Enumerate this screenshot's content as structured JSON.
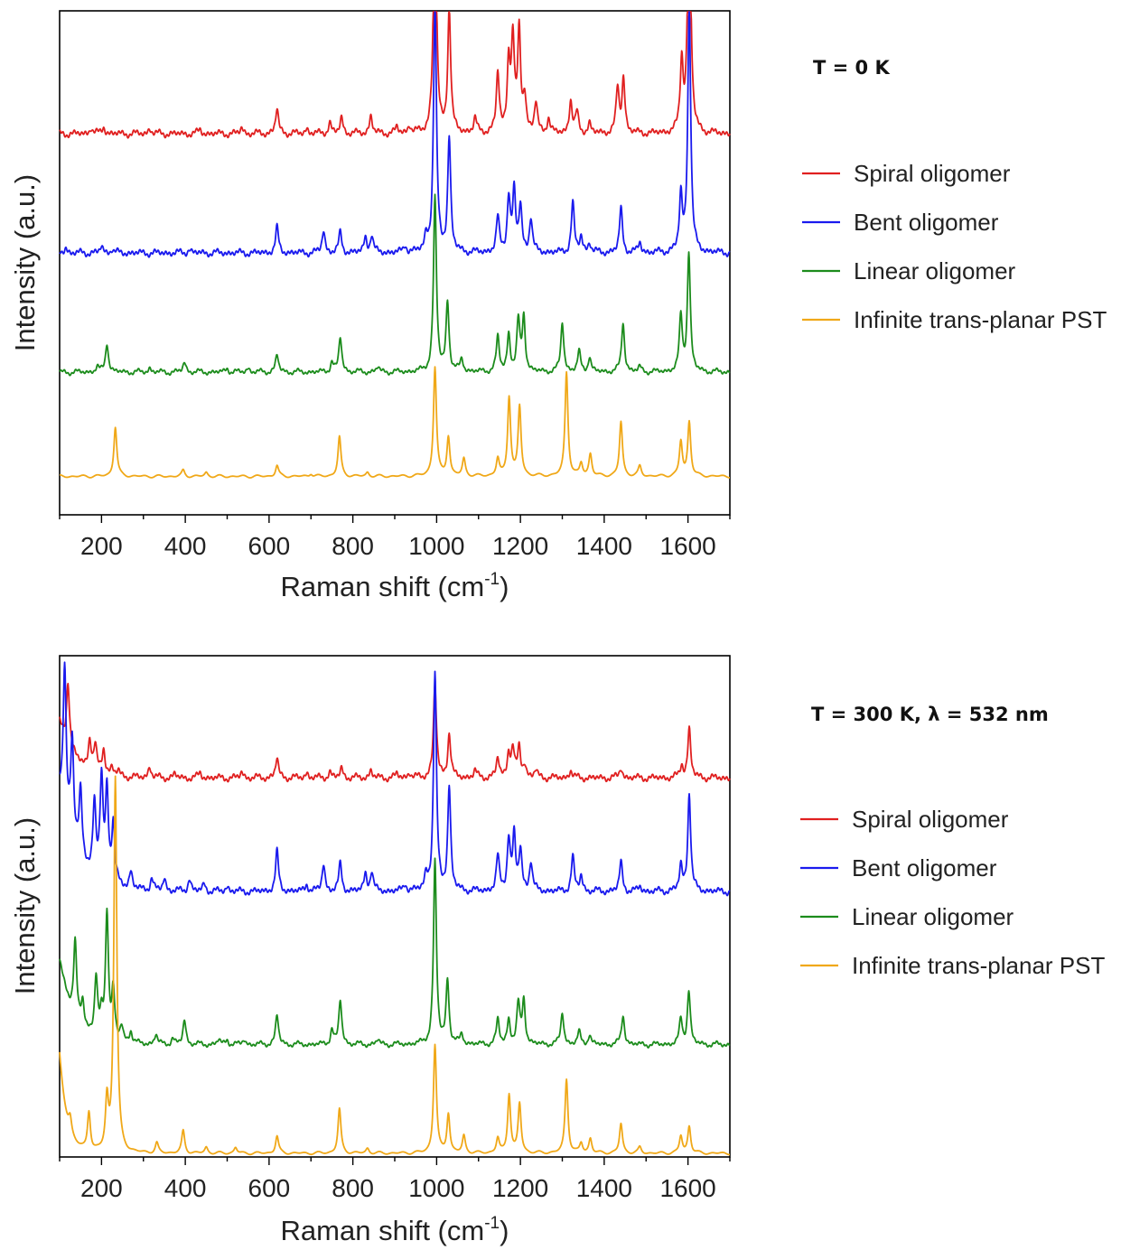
{
  "chart_data": [
    {
      "type": "line",
      "condition": "T = 0 K",
      "xlabel": "Raman shift (cm",
      "xlabel_sup": "-1",
      "xlabel_close": ")",
      "ylabel": "Intensity (a.u.)",
      "xlim": [
        100,
        1700
      ],
      "x_ticks": [
        200,
        400,
        600,
        800,
        1000,
        1200,
        1400,
        1600
      ],
      "legend_position": "right",
      "series": [
        {
          "name": "Spiral oligomer",
          "color": "#e02020",
          "offset": 0.76,
          "noise": 0.006,
          "ripple": 0.003,
          "peaks": [
            [
              175,
              0.012
            ],
            [
              205,
              0.014
            ],
            [
              315,
              0.01
            ],
            [
              435,
              0.008
            ],
            [
              535,
              0.012
            ],
            [
              619,
              0.05
            ],
            [
              690,
              0.01
            ],
            [
              745,
              0.022
            ],
            [
              773,
              0.032
            ],
            [
              843,
              0.035
            ],
            [
              905,
              0.012
            ],
            [
              935,
              0.015
            ],
            [
              996,
              0.52
            ],
            [
              1030,
              0.25
            ],
            [
              1092,
              0.03
            ],
            [
              1146,
              0.12
            ],
            [
              1172,
              0.14
            ],
            [
              1182,
              0.18
            ],
            [
              1197,
              0.2
            ],
            [
              1210,
              0.07
            ],
            [
              1237,
              0.06
            ],
            [
              1267,
              0.03
            ],
            [
              1320,
              0.065
            ],
            [
              1335,
              0.04
            ],
            [
              1365,
              0.02
            ],
            [
              1432,
              0.09
            ],
            [
              1446,
              0.11
            ],
            [
              1585,
              0.14
            ],
            [
              1603,
              0.55
            ]
          ]
        },
        {
          "name": "Bent oligomer",
          "color": "#1a1aee",
          "offset": 0.52,
          "noise": 0.006,
          "ripple": 0.003,
          "peaks": [
            [
              115,
              0.01
            ],
            [
              200,
              0.013
            ],
            [
              225,
              0.008
            ],
            [
              410,
              0.008
            ],
            [
              619,
              0.05
            ],
            [
              730,
              0.045
            ],
            [
              770,
              0.04
            ],
            [
              830,
              0.03
            ],
            [
              845,
              0.035
            ],
            [
              925,
              0.015
            ],
            [
              975,
              0.03
            ],
            [
              996,
              0.5
            ],
            [
              1030,
              0.23
            ],
            [
              1146,
              0.07
            ],
            [
              1172,
              0.11
            ],
            [
              1185,
              0.12
            ],
            [
              1200,
              0.09
            ],
            [
              1225,
              0.07
            ],
            [
              1325,
              0.1
            ],
            [
              1345,
              0.03
            ],
            [
              1365,
              0.02
            ],
            [
              1440,
              0.09
            ],
            [
              1485,
              0.02
            ],
            [
              1583,
              0.11
            ],
            [
              1603,
              0.5
            ]
          ]
        },
        {
          "name": "Linear oligomer",
          "color": "#1c8c1c",
          "offset": 0.28,
          "noise": 0.005,
          "ripple": 0.002,
          "peaks": [
            [
              190,
              0.01
            ],
            [
              213,
              0.06
            ],
            [
              315,
              0.008
            ],
            [
              398,
              0.02
            ],
            [
              500,
              0.008
            ],
            [
              550,
              0.008
            ],
            [
              619,
              0.035
            ],
            [
              750,
              0.02
            ],
            [
              770,
              0.07
            ],
            [
              860,
              0.01
            ],
            [
              996,
              0.35
            ],
            [
              1026,
              0.14
            ],
            [
              1060,
              0.025
            ],
            [
              1146,
              0.07
            ],
            [
              1172,
              0.075
            ],
            [
              1195,
              0.1
            ],
            [
              1208,
              0.11
            ],
            [
              1300,
              0.1
            ],
            [
              1340,
              0.04
            ],
            [
              1365,
              0.03
            ],
            [
              1445,
              0.1
            ],
            [
              1485,
              0.01
            ],
            [
              1583,
              0.11
            ],
            [
              1602,
              0.24
            ]
          ]
        },
        {
          "name": "Infinite trans-planar PST",
          "color": "#f0a818",
          "offset": 0.07,
          "noise": 0.003,
          "ripple": 0.0,
          "peaks": [
            [
              233,
              0.1
            ],
            [
              395,
              0.012
            ],
            [
              450,
              0.008
            ],
            [
              619,
              0.022
            ],
            [
              700,
              0.006
            ],
            [
              768,
              0.08
            ],
            [
              835,
              0.008
            ],
            [
              996,
              0.22
            ],
            [
              1028,
              0.08
            ],
            [
              1065,
              0.035
            ],
            [
              1146,
              0.035
            ],
            [
              1173,
              0.16
            ],
            [
              1198,
              0.14
            ],
            [
              1310,
              0.21
            ],
            [
              1345,
              0.025
            ],
            [
              1367,
              0.045
            ],
            [
              1440,
              0.11
            ],
            [
              1485,
              0.02
            ],
            [
              1583,
              0.07
            ],
            [
              1603,
              0.11
            ]
          ]
        }
      ]
    },
    {
      "type": "line",
      "condition": "T = 300 K, λ = 532 nm",
      "xlabel": "Raman shift (cm",
      "xlabel_sup": "-1",
      "xlabel_close": ")",
      "ylabel": "Intensity (a.u.)",
      "xlim": [
        100,
        1700
      ],
      "x_ticks": [
        200,
        400,
        600,
        800,
        1000,
        1200,
        1400,
        1600
      ],
      "legend_position": "right",
      "series": [
        {
          "name": "Spiral oligomer",
          "color": "#e02020",
          "offset": 0.76,
          "noise": 0.006,
          "ripple": 0.003,
          "lowfreq_amp": 0.11,
          "lowfreq_tau": 40,
          "peaks": [
            [
              120,
              0.13
            ],
            [
              172,
              0.06
            ],
            [
              185,
              0.05
            ],
            [
              205,
              0.05
            ],
            [
              225,
              0.015
            ],
            [
              240,
              0.01
            ],
            [
              315,
              0.022
            ],
            [
              375,
              0.008
            ],
            [
              435,
              0.01
            ],
            [
              535,
              0.012
            ],
            [
              619,
              0.04
            ],
            [
              690,
              0.01
            ],
            [
              745,
              0.012
            ],
            [
              773,
              0.02
            ],
            [
              843,
              0.015
            ],
            [
              905,
              0.008
            ],
            [
              935,
              0.01
            ],
            [
              996,
              0.19
            ],
            [
              1030,
              0.09
            ],
            [
              1092,
              0.015
            ],
            [
              1146,
              0.04
            ],
            [
              1172,
              0.05
            ],
            [
              1182,
              0.055
            ],
            [
              1197,
              0.06
            ],
            [
              1210,
              0.025
            ],
            [
              1237,
              0.015
            ],
            [
              1320,
              0.015
            ],
            [
              1440,
              0.02
            ],
            [
              1585,
              0.025
            ],
            [
              1603,
              0.1
            ]
          ]
        },
        {
          "name": "Bent oligomer",
          "color": "#1a1aee",
          "offset": 0.53,
          "noise": 0.006,
          "ripple": 0.003,
          "lowfreq_amp": 0.2,
          "lowfreq_tau": 45,
          "peaks": [
            [
              112,
              0.3
            ],
            [
              130,
              0.2
            ],
            [
              150,
              0.13
            ],
            [
              183,
              0.14
            ],
            [
              200,
              0.2
            ],
            [
              213,
              0.18
            ],
            [
              228,
              0.12
            ],
            [
              270,
              0.035
            ],
            [
              320,
              0.025
            ],
            [
              350,
              0.025
            ],
            [
              410,
              0.025
            ],
            [
              445,
              0.015
            ],
            [
              500,
              0.01
            ],
            [
              619,
              0.08
            ],
            [
              690,
              0.015
            ],
            [
              730,
              0.055
            ],
            [
              770,
              0.055
            ],
            [
              830,
              0.035
            ],
            [
              845,
              0.04
            ],
            [
              925,
              0.015
            ],
            [
              975,
              0.03
            ],
            [
              996,
              0.44
            ],
            [
              1030,
              0.21
            ],
            [
              1146,
              0.07
            ],
            [
              1172,
              0.105
            ],
            [
              1185,
              0.11
            ],
            [
              1200,
              0.08
            ],
            [
              1225,
              0.06
            ],
            [
              1325,
              0.07
            ],
            [
              1345,
              0.03
            ],
            [
              1440,
              0.06
            ],
            [
              1485,
              0.01
            ],
            [
              1583,
              0.05
            ],
            [
              1603,
              0.2
            ]
          ]
        },
        {
          "name": "Linear oligomer",
          "color": "#1c8c1c",
          "offset": 0.22,
          "noise": 0.005,
          "ripple": 0.002,
          "lowfreq_amp": 0.17,
          "lowfreq_tau": 35,
          "peaks": [
            [
              137,
              0.15
            ],
            [
              155,
              0.05
            ],
            [
              187,
              0.12
            ],
            [
              200,
              0.04
            ],
            [
              213,
              0.26
            ],
            [
              228,
              0.1
            ],
            [
              248,
              0.03
            ],
            [
              270,
              0.025
            ],
            [
              330,
              0.02
            ],
            [
              370,
              0.012
            ],
            [
              398,
              0.05
            ],
            [
              480,
              0.01
            ],
            [
              500,
              0.01
            ],
            [
              540,
              0.01
            ],
            [
              619,
              0.06
            ],
            [
              750,
              0.03
            ],
            [
              770,
              0.09
            ],
            [
              860,
              0.01
            ],
            [
              996,
              0.37
            ],
            [
              1026,
              0.13
            ],
            [
              1060,
              0.02
            ],
            [
              1146,
              0.05
            ],
            [
              1172,
              0.05
            ],
            [
              1195,
              0.08
            ],
            [
              1208,
              0.09
            ],
            [
              1300,
              0.065
            ],
            [
              1340,
              0.025
            ],
            [
              1365,
              0.02
            ],
            [
              1445,
              0.06
            ],
            [
              1583,
              0.05
            ],
            [
              1602,
              0.11
            ]
          ]
        },
        {
          "name": "Infinite trans-planar PST",
          "color": "#f0a818",
          "offset": 0.0,
          "noise": 0.003,
          "ripple": 0.0,
          "lowfreq_amp": 0.2,
          "lowfreq_tau": 18,
          "peaks": [
            [
              125,
              0.03
            ],
            [
              170,
              0.08
            ],
            [
              213,
              0.1
            ],
            [
              233,
              0.76
            ],
            [
              332,
              0.02
            ],
            [
              395,
              0.045
            ],
            [
              450,
              0.012
            ],
            [
              520,
              0.012
            ],
            [
              619,
              0.035
            ],
            [
              768,
              0.09
            ],
            [
              835,
              0.01
            ],
            [
              996,
              0.22
            ],
            [
              1028,
              0.08
            ],
            [
              1065,
              0.035
            ],
            [
              1146,
              0.03
            ],
            [
              1173,
              0.12
            ],
            [
              1198,
              0.1
            ],
            [
              1310,
              0.15
            ],
            [
              1345,
              0.02
            ],
            [
              1367,
              0.03
            ],
            [
              1440,
              0.06
            ],
            [
              1485,
              0.012
            ],
            [
              1583,
              0.035
            ],
            [
              1603,
              0.055
            ]
          ]
        }
      ]
    }
  ]
}
